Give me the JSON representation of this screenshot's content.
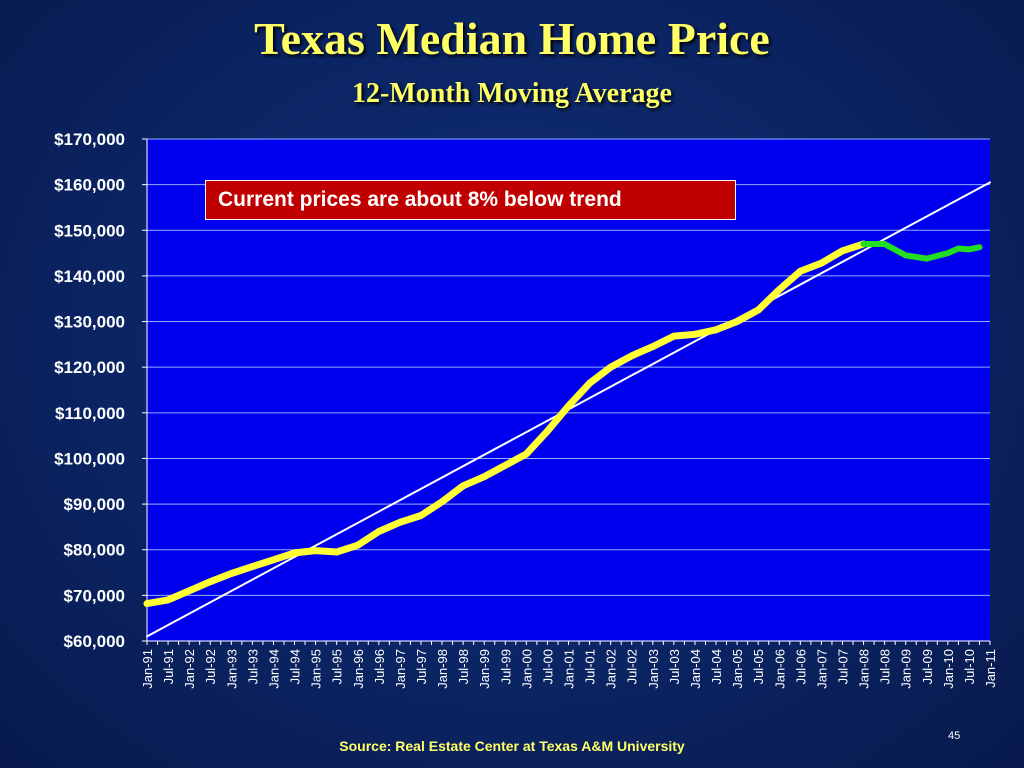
{
  "title": "Texas Median Home Price",
  "subtitle": "12-Month Moving Average",
  "annotation": "Current prices are about 8% below trend",
  "source": "Source:  Real Estate Center at Texas A&M University",
  "page_number": "45",
  "colors": {
    "background": "#0b2463",
    "plot_background": "#0000ee",
    "title": "#ffff66",
    "series_historical": "#ffff33",
    "series_recent": "#22dd22",
    "trend_line": "#ffffff",
    "annotation_box": "#c00000"
  },
  "chart_data": {
    "type": "line",
    "title": "Texas Median Home Price",
    "subtitle": "12-Month Moving Average",
    "xlabel": "",
    "ylabel": "",
    "ylim": [
      60000,
      170000
    ],
    "xlim": [
      "Jan-91",
      "Jan-11"
    ],
    "grid": true,
    "yticks": [
      "$60,000",
      "$70,000",
      "$80,000",
      "$90,000",
      "$100,000",
      "$110,000",
      "$120,000",
      "$130,000",
      "$140,000",
      "$150,000",
      "$160,000",
      "$170,000"
    ],
    "xticks": [
      "Jan-91",
      "Jul-91",
      "Jan-92",
      "Jul-92",
      "Jan-93",
      "Jul-93",
      "Jan-94",
      "Jul-94",
      "Jan-95",
      "Jul-95",
      "Jan-96",
      "Jul-96",
      "Jan-97",
      "Jul-97",
      "Jan-98",
      "Jul-98",
      "Jan-99",
      "Jul-99",
      "Jan-00",
      "Jul-00",
      "Jan-01",
      "Jul-01",
      "Jan-02",
      "Jul-02",
      "Jan-03",
      "Jul-03",
      "Jan-04",
      "Jul-04",
      "Jan-05",
      "Jul-05",
      "Jan-06",
      "Jul-06",
      "Jan-07",
      "Jul-07",
      "Jan-08",
      "Jul-08",
      "Jan-09",
      "Jul-09",
      "Jan-10",
      "Jul-10",
      "Jan-11"
    ],
    "series": [
      {
        "values": [
          [
            "Jan-91",
            68200
          ],
          [
            "Jul-91",
            69000
          ],
          [
            "Jan-92",
            71000
          ],
          [
            "Jul-92",
            73000
          ],
          [
            "Jan-93",
            74800
          ],
          [
            "Jul-93",
            76300
          ],
          [
            "Jan-94",
            77800
          ],
          [
            "Jul-94",
            79300
          ],
          [
            "Jan-95",
            79800
          ],
          [
            "Jul-95",
            79500
          ],
          [
            "Jan-96",
            81000
          ],
          [
            "Jul-96",
            84000
          ],
          [
            "Jan-97",
            86000
          ],
          [
            "Jul-97",
            87500
          ],
          [
            "Jan-98",
            90500
          ],
          [
            "Jul-98",
            94000
          ],
          [
            "Jan-99",
            96000
          ],
          [
            "Jul-99",
            98500
          ],
          [
            "Jan-00",
            101000
          ],
          [
            "Jul-00",
            106000
          ],
          [
            "Jan-01",
            111500
          ],
          [
            "Jul-01",
            116500
          ],
          [
            "Jan-02",
            120000
          ],
          [
            "Jul-02",
            122500
          ],
          [
            "Jan-03",
            124500
          ],
          [
            "Jul-03",
            126800
          ],
          [
            "Jan-04",
            127200
          ],
          [
            "Jul-04",
            128200
          ],
          [
            "Jan-05",
            130000
          ],
          [
            "Jul-05",
            132500
          ],
          [
            "Jan-06",
            137000
          ],
          [
            "Jul-06",
            141000
          ],
          [
            "Jan-07",
            142800
          ],
          [
            "Jul-07",
            145500
          ],
          [
            "Jan-08",
            147000
          ]
        ]
      },
      {
        "values": [
          [
            "Jan-08",
            147000
          ],
          [
            "Jul-08",
            147000
          ],
          [
            "Jan-09",
            144500
          ],
          [
            "Jul-09",
            143800
          ],
          [
            "Jan-10",
            145000
          ],
          [
            "Apr-10",
            146000
          ],
          [
            "Jul-10",
            145800
          ],
          [
            "Oct-10",
            146300
          ]
        ]
      },
      {
        "values": [
          [
            "Jan-91",
            61000
          ],
          [
            "Jan-11",
            160500
          ]
        ]
      }
    ]
  }
}
